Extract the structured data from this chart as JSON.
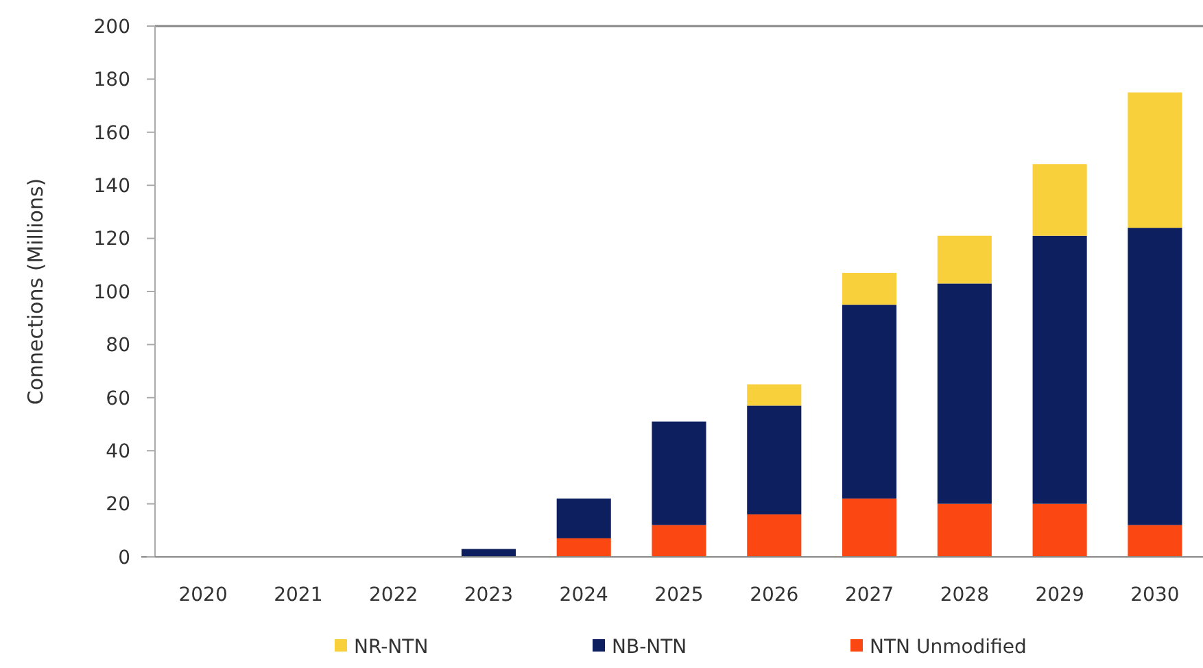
{
  "chart_data": {
    "type": "bar",
    "stacked": true,
    "ylabel": "Connections (Millions)",
    "categories": [
      "2020",
      "2021",
      "2022",
      "2023",
      "2024",
      "2025",
      "2026",
      "2027",
      "2028",
      "2029",
      "2030"
    ],
    "series": [
      {
        "name": "NTN Unmodified",
        "color": "#fb4813",
        "values": [
          0,
          0,
          0,
          0,
          7,
          12,
          16,
          22,
          20,
          20,
          12
        ]
      },
      {
        "name": "NB-NTN",
        "color": "#0d1f5e",
        "values": [
          0,
          0,
          0,
          3,
          15,
          39,
          41,
          73,
          83,
          101,
          112
        ]
      },
      {
        "name": "NR-NTN",
        "color": "#f8d03c",
        "values": [
          0,
          0,
          0,
          0,
          0,
          0,
          8,
          12,
          18,
          27,
          51
        ]
      }
    ],
    "ylim": [
      0,
      200
    ],
    "yticks": [
      0,
      20,
      40,
      60,
      80,
      100,
      120,
      140,
      160,
      180,
      200
    ],
    "grid": false,
    "legend": "bottom"
  }
}
